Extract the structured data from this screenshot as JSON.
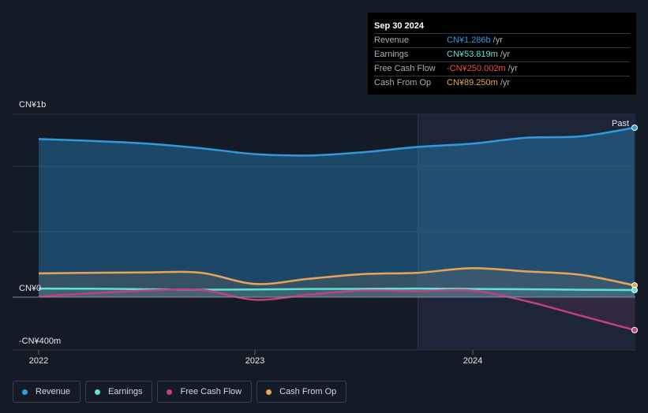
{
  "tooltip": {
    "date": "Sep 30 2024",
    "rows": [
      {
        "label": "Revenue",
        "value": "CN¥1.286b",
        "unit": "/yr",
        "color": "#2f9ae0"
      },
      {
        "label": "Earnings",
        "value": "CN¥53.819m",
        "unit": "/yr",
        "color": "#5fe3cf"
      },
      {
        "label": "Free Cash Flow",
        "value": "-CN¥250.002m",
        "unit": "/yr",
        "color": "#f04a4f"
      },
      {
        "label": "Cash From Op",
        "value": "CN¥89.250m",
        "unit": "/yr",
        "color": "#e8a45a"
      }
    ]
  },
  "legend": [
    {
      "label": "Revenue",
      "color": "#2f9ae0"
    },
    {
      "label": "Earnings",
      "color": "#5fe3cf"
    },
    {
      "label": "Free Cash Flow",
      "color": "#c2407d"
    },
    {
      "label": "Cash From Op",
      "color": "#e8a45a"
    }
  ],
  "chart_data": {
    "type": "line",
    "y_tick_labels": [
      {
        "value": 1000,
        "label": "CN¥1b"
      },
      {
        "value": 0,
        "label": "CN¥0"
      },
      {
        "value": -400,
        "label": "-CN¥400m"
      }
    ],
    "x_tick_labels": [
      {
        "value": 2022.0,
        "label": "2022"
      },
      {
        "value": 2023.0,
        "label": "2023"
      },
      {
        "value": 2024.0,
        "label": "2024"
      }
    ],
    "xlim": [
      2021.9,
      2024.75
    ],
    "ylim": [
      -400,
      1000
    ],
    "past_label": "Past",
    "past_start": 2023.75,
    "series": [
      {
        "name": "Revenue",
        "color": "#2f9ae0",
        "fill": true,
        "x": [
          2022.0,
          2022.25,
          2022.5,
          2022.75,
          2023.0,
          2023.25,
          2023.5,
          2023.75,
          2024.0,
          2024.25,
          2024.5,
          2024.75
        ],
        "y": [
          1200,
          1185,
          1165,
          1130,
          1085,
          1075,
          1100,
          1140,
          1165,
          1210,
          1220,
          1286
        ]
      },
      {
        "name": "Earnings",
        "color": "#5fe3cf",
        "fill": false,
        "x": [
          2022.0,
          2022.25,
          2022.5,
          2022.75,
          2023.0,
          2023.25,
          2023.5,
          2023.75,
          2024.0,
          2024.25,
          2024.5,
          2024.75
        ],
        "y": [
          65,
          64,
          60,
          57,
          58,
          62,
          63,
          65,
          62,
          60,
          56,
          53.8
        ]
      },
      {
        "name": "Free Cash Flow",
        "color": "#c2407d",
        "fill": false,
        "x": [
          2022.0,
          2022.25,
          2022.5,
          2022.75,
          2023.0,
          2023.25,
          2023.5,
          2023.75,
          2024.0,
          2024.25,
          2024.5,
          2024.75
        ],
        "y": [
          5,
          30,
          50,
          55,
          -20,
          20,
          50,
          45,
          50,
          -30,
          -140,
          -250
        ]
      },
      {
        "name": "Cash From Op",
        "color": "#e8a45a",
        "fill": false,
        "x": [
          2022.0,
          2022.25,
          2022.5,
          2022.75,
          2023.0,
          2023.25,
          2023.5,
          2023.75,
          2024.0,
          2024.25,
          2024.5,
          2024.75
        ],
        "y": [
          180,
          185,
          188,
          185,
          100,
          140,
          175,
          185,
          220,
          195,
          170,
          89.25
        ]
      }
    ]
  }
}
